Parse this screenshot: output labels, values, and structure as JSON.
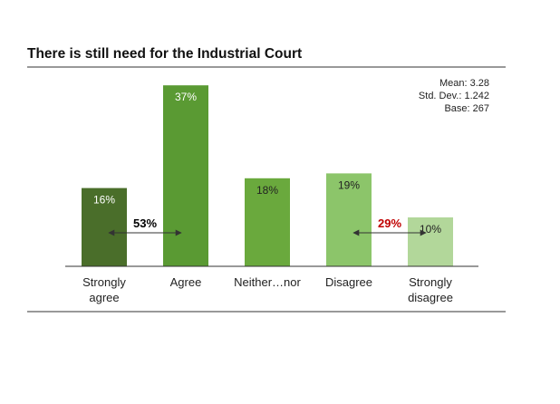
{
  "chart_data": {
    "type": "bar",
    "title": "There is still need for the Industrial Court",
    "categories": [
      [
        "Strongly",
        "agree"
      ],
      [
        "Agree"
      ],
      [
        "Neither…nor"
      ],
      [
        "Disagree"
      ],
      [
        "Strongly",
        "disagree"
      ]
    ],
    "values": [
      16,
      37,
      18,
      19,
      10
    ],
    "value_labels": [
      "16%",
      "37%",
      "18%",
      "19%",
      "10%"
    ],
    "colors": [
      "#4a6e2a",
      "#5a9a33",
      "#6aa93d",
      "#8cc56a",
      "#b2d79a"
    ],
    "label_colors": [
      "#ffffff",
      "#ffffff",
      "#222222",
      "#222222",
      "#222222"
    ],
    "ylim": [
      0,
      40
    ],
    "xlabel": "",
    "ylabel": "",
    "stats": [
      "Mean: 3.28",
      "Std. Dev.: 1.242",
      "Base: 267"
    ],
    "annotations": [
      {
        "label": "53%",
        "from": 0,
        "to": 1,
        "color": "#000000"
      },
      {
        "label": "29%",
        "from": 3,
        "to": 4,
        "color": "#c00000"
      }
    ]
  }
}
